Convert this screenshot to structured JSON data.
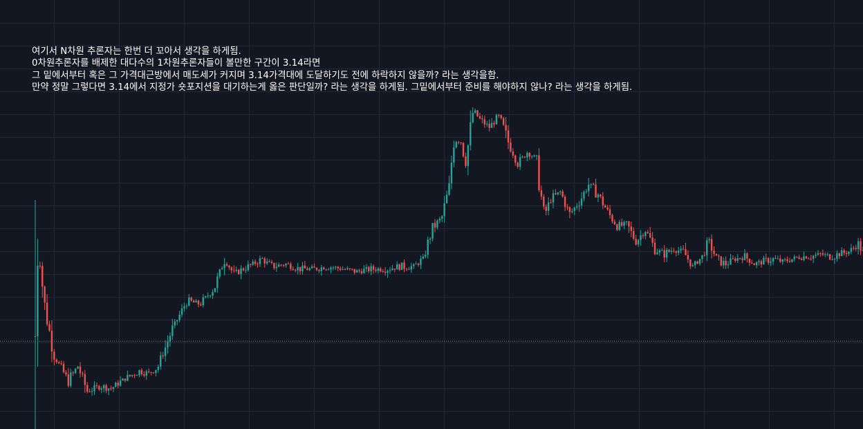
{
  "annotation": {
    "lines": [
      "여기서 N차원 추론자는 한번 더 꼬아서 생각을 하게됨.",
      "0차원추론자를 배제한 대다수의 1차원추론자들이 볼만한 구간이 3.14라면",
      "그 밑에서부터 혹은 그 가격대근방에서 매도세가 커지며 3.14가격대에 도달하기도 전에 하락하지 않을까? 라는 생각을함.",
      "만약 정말 그렇다면 3.14에서 지정가 숏포지션을 대기하는게 옳은 판단일까? 라는 생각을 하게됨. 그밑에서부터 준비를 해야하지 않나? 라는 생각을 하게됨."
    ]
  },
  "colors": {
    "background": "#131722",
    "grid": "#232837",
    "up": "#26a69a",
    "down": "#ef5350",
    "reference_line": "#5e8c8a"
  },
  "chart_data": {
    "type": "candlestick",
    "title": "",
    "xlabel": "",
    "ylabel": "",
    "grid": true,
    "ylim": [
      0,
      100
    ],
    "reference_line_value": 28,
    "series": [
      {
        "path": [
          [
            0,
            30
          ],
          [
            0.4,
            70
          ],
          [
            2,
            42
          ],
          [
            4,
            22
          ],
          [
            7,
            12
          ],
          [
            9,
            18
          ],
          [
            11,
            8
          ],
          [
            14,
            10
          ],
          [
            16,
            9
          ],
          [
            19,
            13
          ],
          [
            22,
            16
          ],
          [
            24,
            15
          ],
          [
            26,
            18
          ],
          [
            29,
            33
          ],
          [
            32,
            44
          ],
          [
            35,
            43
          ],
          [
            38,
            50
          ],
          [
            40,
            61
          ],
          [
            42,
            55
          ],
          [
            45,
            58
          ],
          [
            48,
            61
          ],
          [
            50,
            58
          ],
          [
            53,
            59
          ],
          [
            56,
            57
          ],
          [
            59,
            57
          ],
          [
            62,
            58
          ],
          [
            65,
            57
          ],
          [
            68,
            56
          ],
          [
            71,
            57
          ],
          [
            74,
            57
          ],
          [
            77,
            58
          ],
          [
            80,
            58
          ],
          [
            82,
            61
          ],
          [
            84,
            73
          ],
          [
            86,
            78
          ],
          [
            87.5,
            90
          ],
          [
            88.5,
            110
          ],
          [
            90,
            108
          ],
          [
            91,
            100
          ],
          [
            92.6,
            121
          ],
          [
            94,
            117
          ],
          [
            96,
            114
          ],
          [
            98,
            118
          ],
          [
            100,
            108
          ],
          [
            102,
            99
          ],
          [
            104,
            104
          ],
          [
            106,
            101
          ],
          [
            107.5,
            78
          ],
          [
            109,
            85
          ],
          [
            111,
            88
          ],
          [
            113,
            79
          ],
          [
            115,
            84
          ],
          [
            117,
            91
          ],
          [
            119,
            87
          ],
          [
            121,
            80
          ],
          [
            123,
            74
          ],
          [
            125,
            75
          ],
          [
            127,
            68
          ],
          [
            129,
            73
          ],
          [
            131,
            65
          ],
          [
            133,
            63
          ],
          [
            135,
            65
          ],
          [
            137,
            64
          ],
          [
            139,
            58
          ],
          [
            141,
            62
          ],
          [
            142.5,
            68
          ],
          [
            144,
            61
          ],
          [
            146,
            59
          ],
          [
            148,
            61
          ],
          [
            150,
            62
          ],
          [
            152,
            59
          ],
          [
            154,
            60
          ],
          [
            156,
            61
          ],
          [
            158,
            60
          ],
          [
            160,
            61
          ],
          [
            162,
            62
          ],
          [
            164,
            62
          ],
          [
            166,
            63
          ],
          [
            168,
            62
          ],
          [
            170,
            63
          ],
          [
            172,
            64
          ],
          [
            174,
            67
          ],
          [
            175,
            64
          ]
        ]
      }
    ]
  }
}
